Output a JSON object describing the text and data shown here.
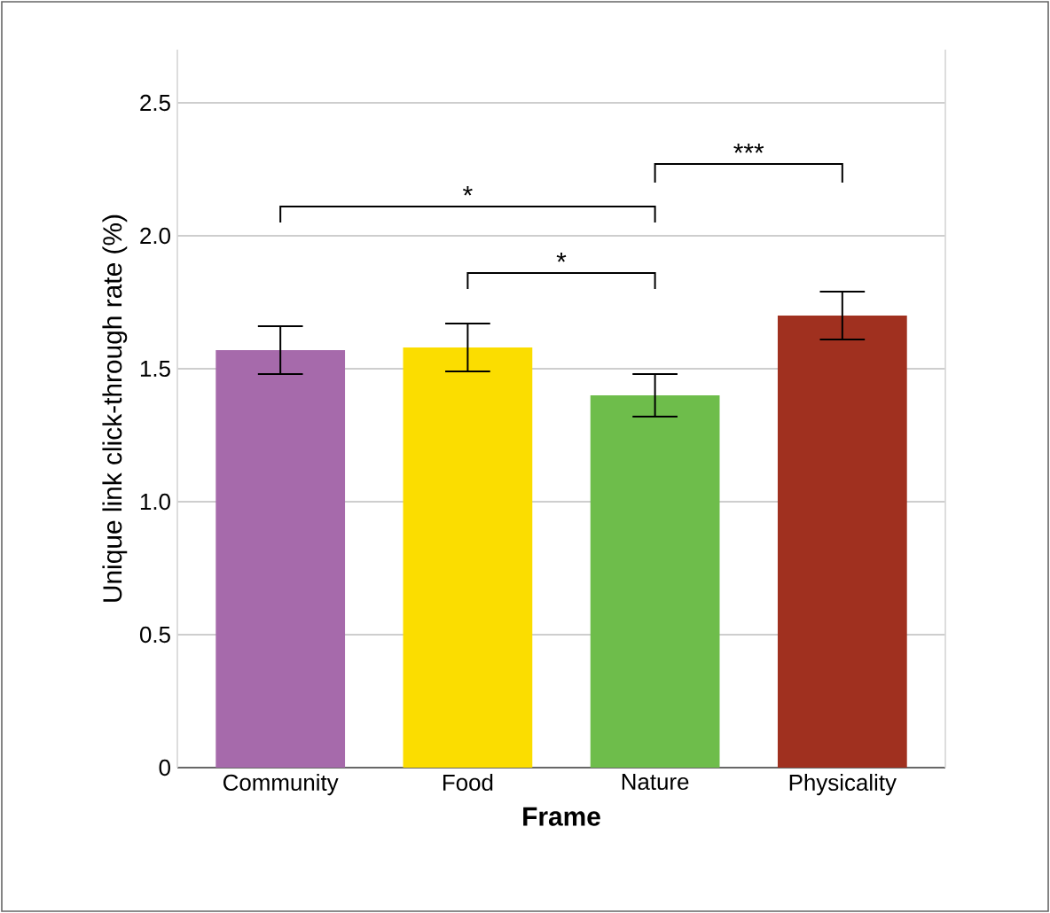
{
  "chart_data": {
    "type": "bar",
    "xlabel": "Frame",
    "ylabel": "Unique link click-through rate (%)",
    "categories": [
      "Community",
      "Food",
      "Nature",
      "Physicality"
    ],
    "values": [
      1.57,
      1.58,
      1.4,
      1.7
    ],
    "errors": [
      0.09,
      0.09,
      0.08,
      0.09
    ],
    "colors": [
      "#a66aab",
      "#fbdd00",
      "#6ebd4b",
      "#a0301f"
    ],
    "ylim": [
      0,
      2.7
    ],
    "yticks": [
      0,
      0.5,
      {
        "value": 1,
        "label": "1.0"
      },
      1.5,
      {
        "value": 2,
        "label": "2.0"
      },
      2.5
    ],
    "grid": "y",
    "annotations": [
      "*",
      "*",
      "***"
    ]
  }
}
